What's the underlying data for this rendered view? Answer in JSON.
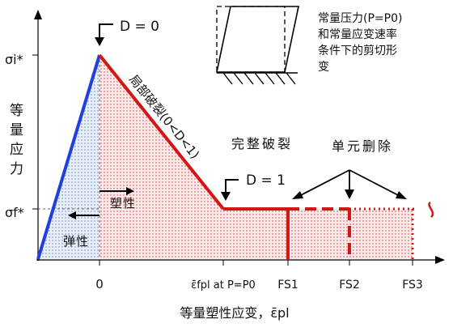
{
  "labels": {
    "sigma_i": "σi*",
    "sigma_f": "σf*",
    "y_axis_title": [
      "等",
      "量",
      "应",
      "力"
    ],
    "x_axis_title": "等量塑性应变，ε̄pl",
    "d_zero": "D = 0",
    "d_one": "D = 1",
    "local_fracture": "局部破裂(0<D<1)",
    "complete_fracture": "完整破裂",
    "element_deletion": "单元删除",
    "plastic": "塑性",
    "elastic": "弹性",
    "shear_note": [
      "常量压力(P=P0)",
      "和常量应变速率",
      "条件下的剪切形",
      "变"
    ]
  },
  "ticks": {
    "zero": "0",
    "ef_at_p0": "ε̄fpl at P=P0",
    "fs1": "FS1",
    "fs2": "FS2",
    "fs3": "FS3"
  },
  "colors": {
    "elastic_line": "#1f3fe0",
    "damage_line": "#d41616",
    "elastic_fill": "#dce6f5",
    "damage_fill": "#f6dddd",
    "axis": "#000000"
  },
  "chart_data": {
    "type": "line",
    "series": [
      {
        "values": [
          [
            0,
            0
          ],
          [
            1,
            1
          ],
          [
            3,
            0.42
          ],
          [
            4,
            0.42
          ]
        ]
      },
      {
        "values": [
          [
            4,
            0.42
          ],
          [
            5,
            0.42
          ]
        ]
      },
      {
        "values": [
          [
            5,
            0.42
          ],
          [
            6,
            0.42
          ]
        ]
      }
    ]
  }
}
